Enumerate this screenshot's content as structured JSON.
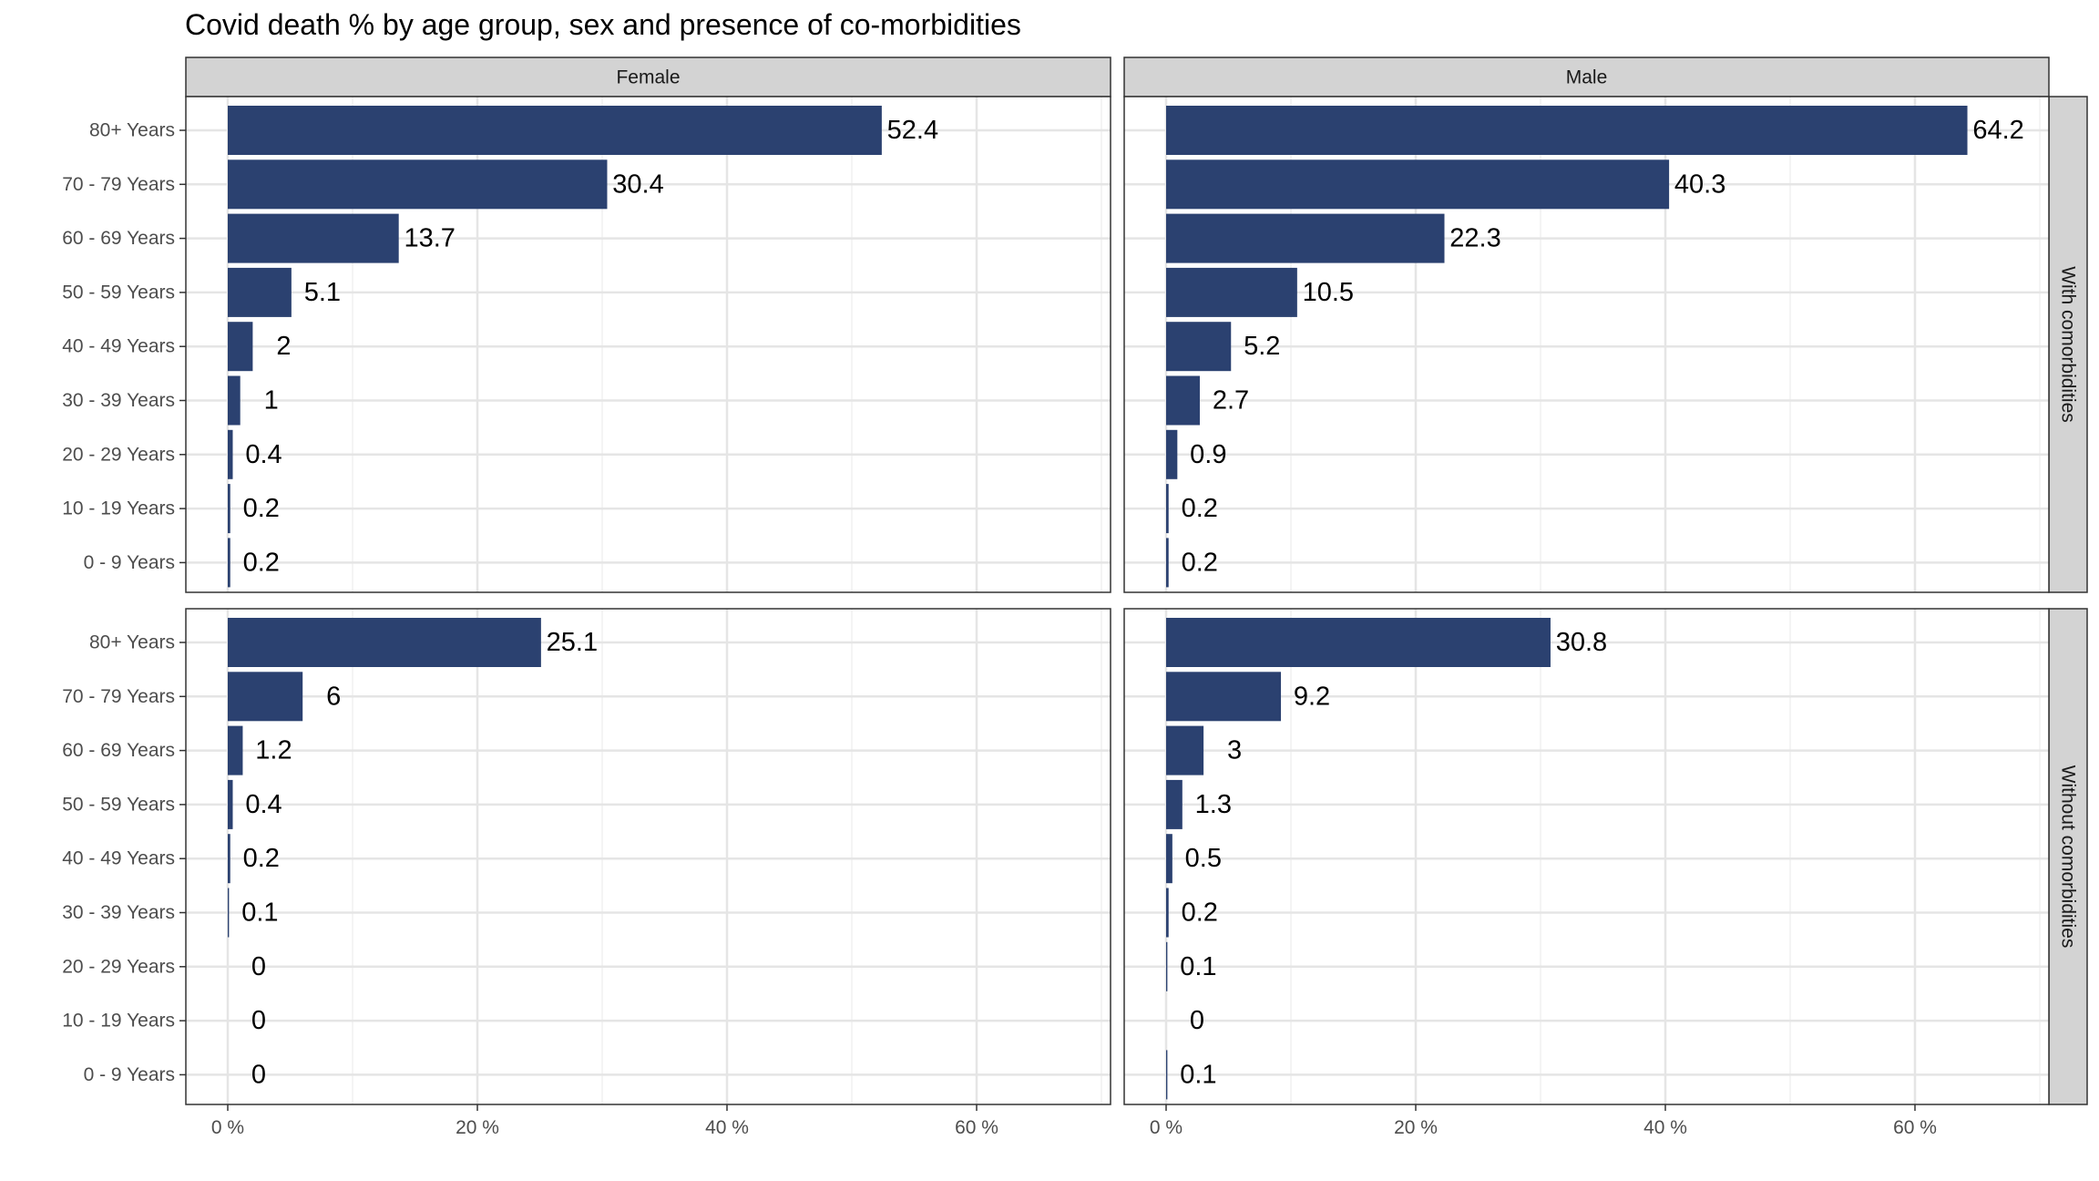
{
  "chart_data": {
    "type": "bar",
    "orientation": "horizontal",
    "title": "Covid death % by age group, sex and presence of co-morbidities",
    "columns": [
      "Female",
      "Male"
    ],
    "rows": [
      "With comorbidities",
      "Without comorbidities"
    ],
    "categories": [
      "80+ Years",
      "70 - 79 Years",
      "60 - 69 Years",
      "50 - 59 Years",
      "40 - 49 Years",
      "30 - 39 Years",
      "20 - 29 Years",
      "10 - 19 Years",
      "0 - 9 Years"
    ],
    "x_ticks": [
      "0 %",
      "20 %",
      "40 %",
      "60 %"
    ],
    "xlim": [
      0,
      70
    ],
    "grid": true,
    "bar_color": "#2b4170",
    "panels": [
      {
        "column": "Female",
        "row": "With comorbidities",
        "values": [
          52.4,
          30.4,
          13.7,
          5.1,
          2,
          1,
          0.4,
          0.2,
          0.2
        ]
      },
      {
        "column": "Male",
        "row": "With comorbidities",
        "values": [
          64.2,
          40.3,
          22.3,
          10.5,
          5.2,
          2.7,
          0.9,
          0.2,
          0.2
        ]
      },
      {
        "column": "Female",
        "row": "Without comorbidities",
        "values": [
          25.1,
          6,
          1.2,
          0.4,
          0.2,
          0.1,
          0,
          0,
          0
        ]
      },
      {
        "column": "Male",
        "row": "Without comorbidities",
        "values": [
          30.8,
          9.2,
          3,
          1.3,
          0.5,
          0.2,
          0.1,
          0,
          0.1
        ]
      }
    ]
  }
}
